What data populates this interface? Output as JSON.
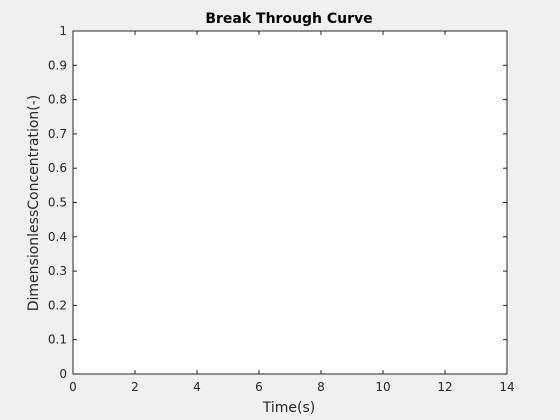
{
  "chart_data": {
    "type": "line",
    "title": "Break Through Curve",
    "xlabel": "Time(s)",
    "ylabel": "DimensionlessConcentration(-)",
    "xlim": [
      0,
      14
    ],
    "ylim": [
      0,
      1
    ],
    "xticks": [
      0,
      2,
      4,
      6,
      8,
      10,
      12,
      14
    ],
    "yticks": [
      0,
      0.1,
      0.2,
      0.3,
      0.4,
      0.5,
      0.6,
      0.7,
      0.8,
      0.9,
      1
    ],
    "xtick_labels": [
      "0",
      "2",
      "4",
      "6",
      "8",
      "10",
      "12",
      "14"
    ],
    "ytick_labels": [
      "0",
      "0.1",
      "0.2",
      "0.3",
      "0.4",
      "0.5",
      "0.6",
      "0.7",
      "0.8",
      "0.9",
      "1"
    ],
    "series": [],
    "grid": false,
    "legend": "none"
  },
  "colors": {
    "figure_background": "#f0f0f0",
    "axes_background": "#ffffff",
    "axes_color": "#262626",
    "text_color": "#262626"
  }
}
